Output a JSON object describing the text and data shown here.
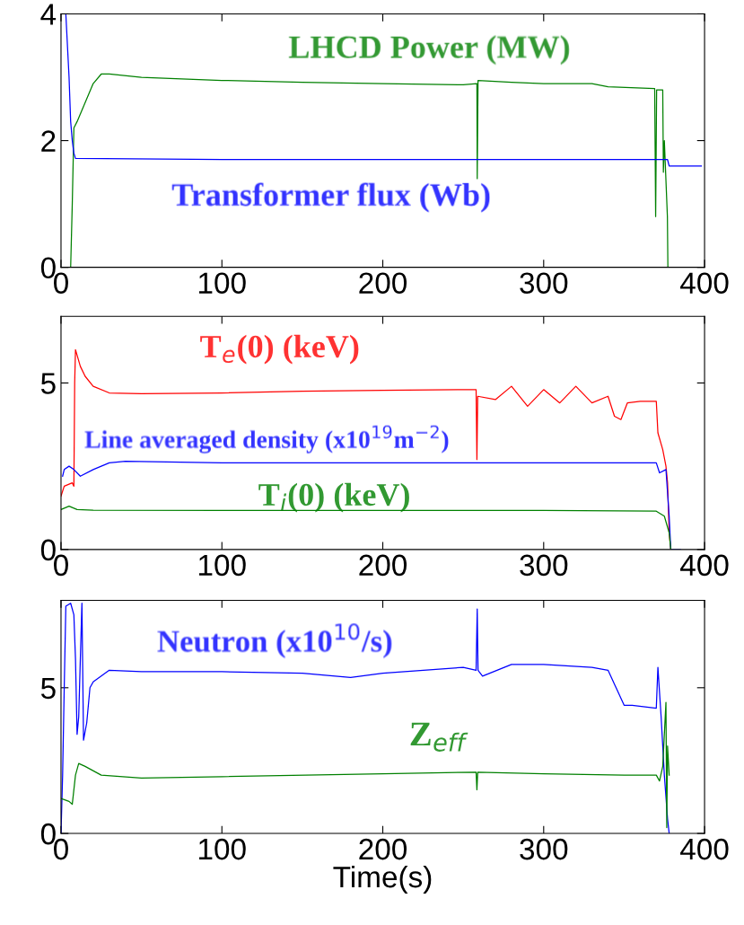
{
  "chart_data": [
    {
      "type": "line",
      "xlim": [
        0,
        400
      ],
      "xticks": [
        0,
        100,
        200,
        300,
        400
      ],
      "ylim": [
        0,
        4
      ],
      "yticks": [
        0,
        2,
        4
      ],
      "grid": false,
      "legend": false,
      "series": [
        {
          "name": "LHCD Power (MW)",
          "color": "#008000",
          "x": [
            5,
            6,
            7,
            8,
            10,
            15,
            20,
            25,
            30,
            50,
            100,
            150,
            200,
            250,
            258.5,
            258.7,
            259.2,
            280,
            300,
            330,
            340,
            369,
            369.6,
            370.2,
            374,
            374.4,
            375,
            376.9,
            377.2
          ],
          "values": [
            0,
            0,
            1.0,
            2.2,
            2.3,
            2.6,
            2.9,
            3.05,
            3.05,
            3.0,
            2.95,
            2.92,
            2.9,
            2.88,
            2.9,
            1.4,
            2.95,
            2.92,
            2.9,
            2.9,
            2.85,
            2.82,
            0.8,
            2.8,
            2.8,
            1.5,
            2.0,
            0.8,
            0
          ]
        },
        {
          "name": "Transformer flux (Wb)",
          "color": "#0000ff",
          "x": [
            3,
            5,
            6,
            7,
            8,
            9,
            100,
            200,
            300,
            377,
            378,
            398
          ],
          "values": [
            4.0,
            3.0,
            2.3,
            2.0,
            1.8,
            1.72,
            1.7,
            1.7,
            1.7,
            1.7,
            1.6,
            1.6
          ]
        }
      ]
    },
    {
      "type": "line",
      "xlim": [
        0,
        400
      ],
      "xticks": [
        0,
        100,
        200,
        300,
        400
      ],
      "ylim": [
        0,
        7
      ],
      "yticks": [
        0,
        5
      ],
      "grid": false,
      "legend": false,
      "series": [
        {
          "name": "T$_{e}$(0) (keV)",
          "color": "#ff0000",
          "x": [
            0,
            2,
            7,
            8,
            8.5,
            9,
            12,
            15,
            20,
            30,
            50,
            100,
            150,
            200,
            250,
            258,
            258.5,
            259,
            270,
            280,
            290,
            300,
            310,
            320,
            330,
            340,
            344,
            348,
            352,
            360,
            370,
            371,
            374,
            376,
            377,
            378,
            379
          ],
          "values": [
            1.6,
            1.9,
            2.0,
            1.9,
            5.0,
            6.0,
            5.5,
            5.2,
            4.9,
            4.7,
            4.68,
            4.7,
            4.75,
            4.78,
            4.8,
            4.8,
            2.7,
            4.6,
            4.5,
            4.9,
            4.3,
            4.8,
            4.4,
            4.9,
            4.4,
            4.6,
            4.0,
            3.9,
            4.4,
            4.45,
            4.45,
            3.5,
            3.0,
            2.5,
            2.0,
            0.5,
            0
          ]
        },
        {
          "name": "Line averaged density (x10$^{19}$m$^{−2}$)",
          "color": "#0000ff",
          "x": [
            1,
            2,
            5,
            8,
            12,
            20,
            30,
            40,
            100,
            200,
            258,
            300,
            370,
            372,
            376,
            378,
            379,
            385
          ],
          "values": [
            2.2,
            2.4,
            2.5,
            2.4,
            2.2,
            2.4,
            2.6,
            2.65,
            2.6,
            2.6,
            2.6,
            2.6,
            2.6,
            2.3,
            2.4,
            1.0,
            0,
            0
          ]
        },
        {
          "name": "T$_{i}$(0) (keV)",
          "color": "#008000",
          "x": [
            0,
            5,
            10,
            20,
            100,
            200,
            300,
            370,
            375,
            378,
            379
          ],
          "values": [
            1.2,
            1.3,
            1.2,
            1.18,
            1.17,
            1.17,
            1.17,
            1.15,
            1.0,
            0.5,
            0
          ]
        }
      ]
    },
    {
      "type": "line",
      "xlim": [
        0,
        400
      ],
      "xticks": [
        0,
        100,
        200,
        300,
        400
      ],
      "ylim": [
        0,
        8
      ],
      "yticks": [
        0,
        5
      ],
      "grid": false,
      "legend": false,
      "xlabel": "Time(s)",
      "series": [
        {
          "name": "Neutron (x10$^{10}$/s)",
          "color": "#0000ff",
          "x": [
            0,
            1,
            2,
            3,
            6,
            8,
            9,
            10,
            11,
            13,
            14,
            16,
            18,
            20,
            25,
            30,
            50,
            100,
            150,
            180,
            200,
            250,
            258,
            258.7,
            259.2,
            262,
            280,
            300,
            330,
            340,
            345,
            350,
            355,
            370,
            371,
            373,
            375,
            377,
            378
          ],
          "values": [
            0,
            2.0,
            5.0,
            7.8,
            7.9,
            7.5,
            6.0,
            3.4,
            4.0,
            7.9,
            3.2,
            3.8,
            5.0,
            5.2,
            5.4,
            5.6,
            5.55,
            5.55,
            5.5,
            5.35,
            5.5,
            5.7,
            5.6,
            7.7,
            5.6,
            5.4,
            5.8,
            5.8,
            5.7,
            5.6,
            5.0,
            4.4,
            4.4,
            4.3,
            5.7,
            4.0,
            2.0,
            0.5,
            0
          ]
        },
        {
          "name": "Z$_{eff}$",
          "color": "#008000",
          "x": [
            0,
            5,
            7,
            9,
            11,
            15,
            25,
            50,
            100,
            200,
            258,
            258.5,
            259,
            300,
            350,
            370,
            372,
            374,
            376,
            376.5,
            377,
            378
          ],
          "values": [
            1.2,
            1.1,
            1.0,
            2.0,
            2.4,
            2.3,
            2.0,
            1.9,
            1.95,
            2.05,
            2.1,
            1.5,
            2.1,
            2.05,
            2.0,
            2.0,
            1.8,
            2.3,
            4.5,
            0.2,
            3.0,
            2.0
          ]
        }
      ]
    }
  ]
}
